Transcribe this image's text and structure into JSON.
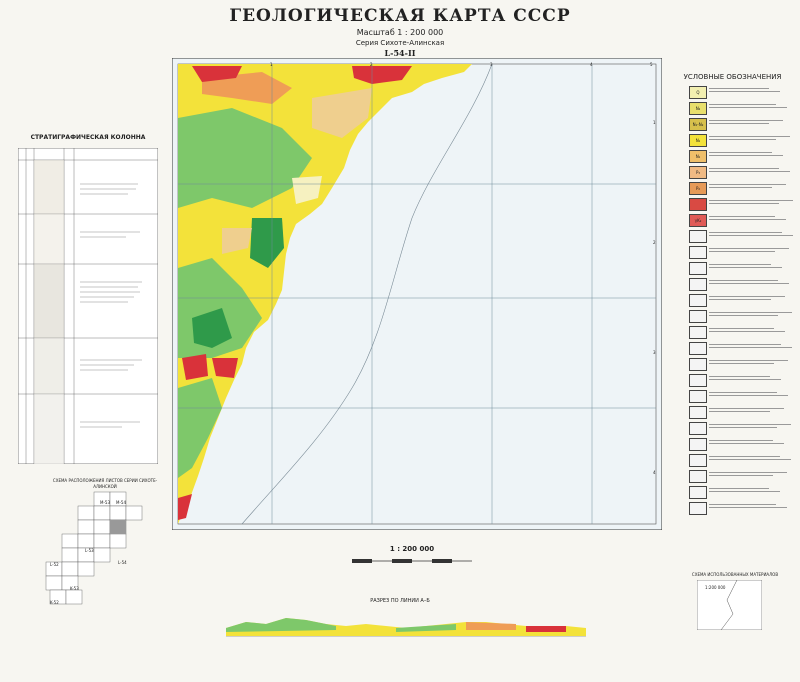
{
  "header": {
    "title": "ГЕОЛОГИЧЕСКАЯ КАРТА СССР",
    "scale": "Масштаб 1 : 200 000",
    "series": "Серия Сихоте-Алинская",
    "sheet": "L-54-II"
  },
  "map": {
    "grid_numbers_top": [
      "1",
      "2",
      "3",
      "4",
      "5"
    ],
    "grid_numbers_side": [
      "1",
      "2",
      "3",
      "4"
    ]
  },
  "stratigraphy": {
    "title": "СТРАТИГРАФИЧЕСКАЯ КОЛОННА"
  },
  "legend": {
    "title": "УСЛОВНЫЕ ОБОЗНАЧЕНИЯ",
    "swatches": [
      {
        "color": "#f2efb0",
        "label": "Q"
      },
      {
        "color": "#e8df6c",
        "label": "N₂"
      },
      {
        "color": "#d7c04c",
        "label": "N₁-N₂"
      },
      {
        "color": "#f3e23a",
        "label": "N₁"
      },
      {
        "color": "#efbf6a",
        "label": "N₁"
      },
      {
        "color": "#f0ba84",
        "label": "P₃"
      },
      {
        "color": "#e69a58",
        "label": "P₂"
      },
      {
        "color": "#d94a43",
        "label": ""
      },
      {
        "color": "#e05a56",
        "label": "γK₂"
      },
      {
        "color": "#f4f4f4",
        "label": ""
      },
      {
        "color": "#f4f4f4",
        "label": ""
      },
      {
        "color": "#f4f4f4",
        "label": ""
      },
      {
        "color": "#f4f4f4",
        "label": ""
      },
      {
        "color": "#f4f4f4",
        "label": ""
      },
      {
        "color": "#f4f4f4",
        "label": ""
      },
      {
        "color": "#f4f4f4",
        "label": ""
      },
      {
        "color": "#f4f4f4",
        "label": ""
      },
      {
        "color": "#f4f4f4",
        "label": ""
      },
      {
        "color": "#f4f4f4",
        "label": ""
      },
      {
        "color": "#f4f4f4",
        "label": ""
      },
      {
        "color": "#f4f4f4",
        "label": ""
      },
      {
        "color": "#f4f4f4",
        "label": ""
      },
      {
        "color": "#f4f4f4",
        "label": ""
      },
      {
        "color": "#f4f4f4",
        "label": ""
      },
      {
        "color": "#f4f4f4",
        "label": ""
      },
      {
        "color": "#f4f4f4",
        "label": ""
      },
      {
        "color": "#f4f4f4",
        "label": ""
      }
    ]
  },
  "bottom": {
    "bar_scale": "1 : 200 000",
    "section_title": "РАЗРЕЗ ПО ЛИНИИ А–Б",
    "index_title": "СХЕМА РАСПОЛОЖЕНИЯ ЛИСТОВ СЕРИИ СИХОТЕ-АЛИНСКОЙ",
    "index_labels": [
      "M-53",
      "M-54",
      "L-53",
      "L-54",
      "L-52",
      "K-53",
      "K-52"
    ],
    "scheme_title": "СХЕМА ИСПОЛЬЗОВАННЫХ МАТЕРИАЛОВ",
    "scheme_text": "1:200 000"
  },
  "colors": {
    "sea": "#eef4f7",
    "yellow": "#f3e23a",
    "green": "#7ec86a",
    "dark_green": "#2f9a4a",
    "red": "#d9323a",
    "orange": "#ef9d56",
    "tan": "#efcf8e",
    "pale": "#f6f1c0"
  }
}
